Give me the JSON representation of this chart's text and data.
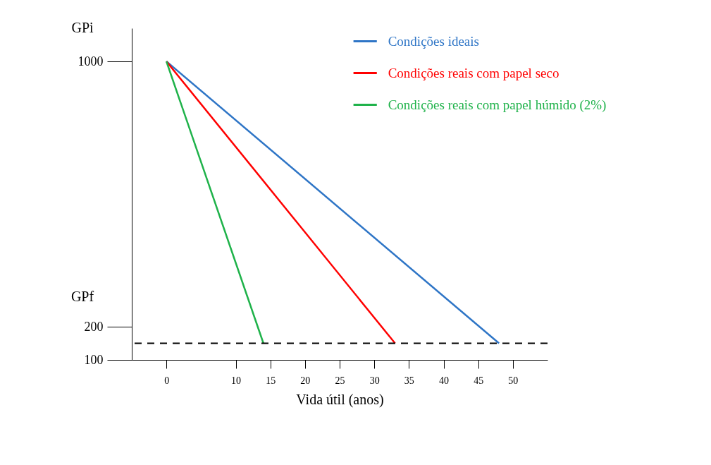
{
  "chart_data": {
    "type": "line",
    "xlabel": "Vida útil (anos)",
    "xlim": [
      -5,
      55
    ],
    "xticks": [
      0,
      10,
      15,
      20,
      25,
      30,
      35,
      40,
      45,
      50
    ],
    "ylim": [
      100,
      1100
    ],
    "yticks": [
      100,
      200,
      1000
    ],
    "series": [
      {
        "name": "Condições ideais",
        "color": "#2e75c6",
        "x": [
          0,
          48
        ],
        "values": [
          1000,
          150
        ]
      },
      {
        "name": "Condições reais com papel seco",
        "color": "#ff0000",
        "x": [
          0,
          33
        ],
        "values": [
          1000,
          150
        ]
      },
      {
        "name": "Condições reais com papel húmido (2%)",
        "color": "#1fb24a",
        "x": [
          0,
          14
        ],
        "values": [
          1000,
          150
        ]
      }
    ],
    "ref_lines": [
      {
        "axis": "y",
        "value": 150,
        "color": "#000000",
        "line_style": "dashed"
      }
    ],
    "annotations": [
      "GPi",
      "GPf"
    ],
    "legend": "top right",
    "grid": false,
    "marker": "none",
    "line_style": "solid"
  }
}
